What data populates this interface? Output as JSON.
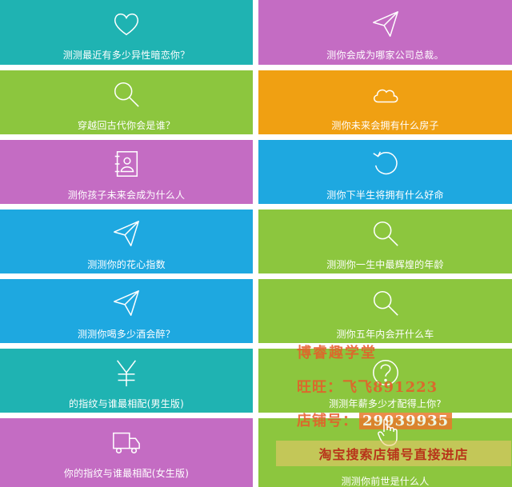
{
  "colors": {
    "teal": "#1fb3b2",
    "purple": "#c46cc3",
    "green": "#8cc63e",
    "orange": "#f0a012",
    "blue": "#1ea8e0"
  },
  "tiles": [
    {
      "label": "测测最近有多少异性暗恋你？",
      "icon": "heart-icon",
      "color": "#1fb3b2"
    },
    {
      "label": "测你会成为哪家公司总裁。",
      "icon": "paper-plane-icon",
      "color": "#c46cc3"
    },
    {
      "label": "穿越回古代你会是谁？",
      "icon": "search-icon",
      "color": "#8cc63e"
    },
    {
      "label": "测你未来会拥有什么房子",
      "icon": "cloud-icon",
      "color": "#f0a012"
    },
    {
      "label": "测你孩子未来会成为什么人",
      "icon": "contact-card-icon",
      "color": "#c46cc3"
    },
    {
      "label": "测你下半生将拥有什么好命",
      "icon": "refresh-icon",
      "color": "#1ea8e0"
    },
    {
      "label": "测测你的花心指数",
      "icon": "paper-plane-icon",
      "color": "#1ea8e0"
    },
    {
      "label": "测测你一生中最辉煌的年龄",
      "icon": "search-icon",
      "color": "#8cc63e"
    },
    {
      "label": "测测你喝多少酒会醉？",
      "icon": "paper-plane-icon",
      "color": "#1ea8e0"
    },
    {
      "label": "测你五年内会开什么车",
      "icon": "search-icon",
      "color": "#8cc63e"
    },
    {
      "label": "的指纹与谁最相配(男生版)",
      "icon": "yen-icon",
      "color": "#1fb3b2"
    },
    {
      "label": "测测年薪多少才配得上你?",
      "icon": "question-icon",
      "color": "#8cc63e"
    },
    {
      "label": "你的指纹与谁最相配(女生版)",
      "icon": "truck-icon",
      "color": "#c46cc3"
    },
    {
      "label": "测测你前世是什么人",
      "icon": "hand-pointer-icon",
      "color": "#8cc63e"
    }
  ],
  "watermark": {
    "title": "博睿趣学堂",
    "wangwang": "旺旺：飞飞891223",
    "shop_label": "店铺号：",
    "shop_number": "29939935",
    "banner": "淘宝搜索店铺号直接进店"
  }
}
